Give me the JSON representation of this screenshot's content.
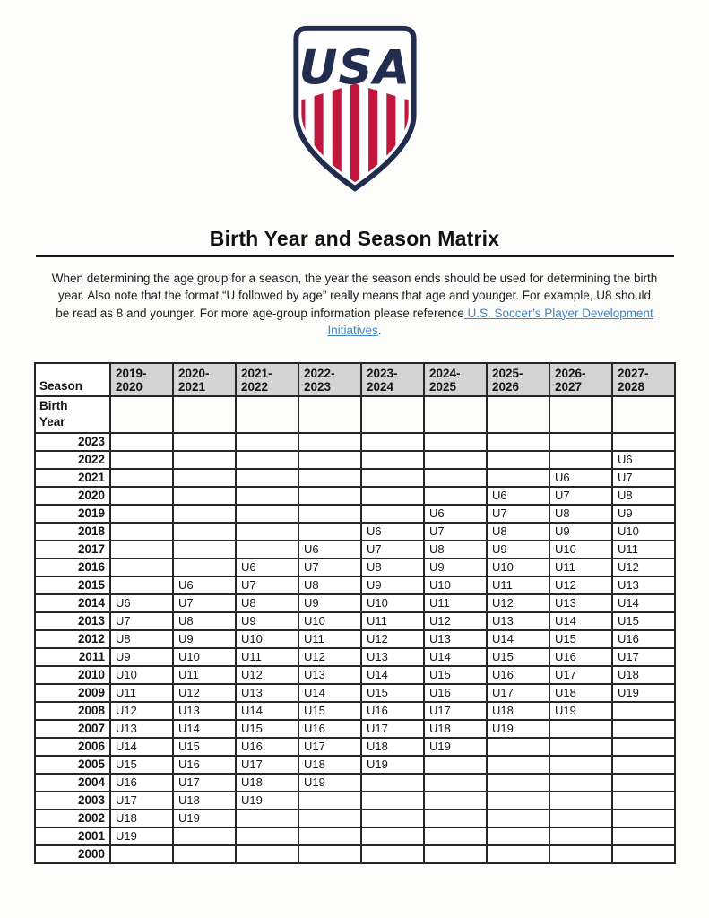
{
  "logo": {
    "wordmark": "USA",
    "navy": "#222c4f",
    "red": "#c2173d",
    "white": "#ffffff"
  },
  "title": "Birth Year and Season Matrix",
  "intro": {
    "text_before": "When determining the age group for a season, the year the season ends should be used for determining the birth year. Also note that the format “U followed by age” really means that age and younger. For example, U8 should be read as 8 and younger. For more age-group information please reference",
    "link_text": " U.S. Soccer’s Player Development Initiatives",
    "text_after": "."
  },
  "table": {
    "corner_label": "Season",
    "row_header_label": "Birth\nYear",
    "seasons": [
      "2019-\n2020",
      "2020-\n2021",
      "2021-\n2022",
      "2022-\n2023",
      "2023-\n2024",
      "2024-\n2025",
      "2025-\n2026",
      "2026-\n2027",
      "2027-\n2028"
    ],
    "rows": [
      {
        "year": "2023",
        "cells": [
          "",
          "",
          "",
          "",
          "",
          "",
          "",
          "",
          ""
        ]
      },
      {
        "year": "2022",
        "cells": [
          "",
          "",
          "",
          "",
          "",
          "",
          "",
          "",
          "U6"
        ]
      },
      {
        "year": "2021",
        "cells": [
          "",
          "",
          "",
          "",
          "",
          "",
          "",
          "U6",
          "U7"
        ]
      },
      {
        "year": "2020",
        "cells": [
          "",
          "",
          "",
          "",
          "",
          "",
          "U6",
          "U7",
          "U8"
        ]
      },
      {
        "year": "2019",
        "cells": [
          "",
          "",
          "",
          "",
          "",
          "U6",
          "U7",
          "U8",
          "U9"
        ]
      },
      {
        "year": "2018",
        "cells": [
          "",
          "",
          "",
          "",
          "U6",
          "U7",
          "U8",
          "U9",
          "U10"
        ]
      },
      {
        "year": "2017",
        "cells": [
          "",
          "",
          "",
          "U6",
          "U7",
          "U8",
          "U9",
          "U10",
          "U11"
        ]
      },
      {
        "year": "2016",
        "cells": [
          "",
          "",
          "U6",
          "U7",
          "U8",
          "U9",
          "U10",
          "U11",
          "U12"
        ]
      },
      {
        "year": "2015",
        "cells": [
          "",
          "U6",
          "U7",
          "U8",
          "U9",
          "U10",
          "U11",
          "U12",
          "U13"
        ]
      },
      {
        "year": "2014",
        "cells": [
          "U6",
          "U7",
          "U8",
          "U9",
          "U10",
          "U11",
          "U12",
          "U13",
          "U14"
        ]
      },
      {
        "year": "2013",
        "cells": [
          "U7",
          "U8",
          "U9",
          "U10",
          "U11",
          "U12",
          "U13",
          "U14",
          "U15"
        ]
      },
      {
        "year": "2012",
        "cells": [
          "U8",
          "U9",
          "U10",
          "U11",
          "U12",
          "U13",
          "U14",
          "U15",
          "U16"
        ]
      },
      {
        "year": "2011",
        "cells": [
          "U9",
          "U10",
          "U11",
          "U12",
          "U13",
          "U14",
          "U15",
          "U16",
          "U17"
        ]
      },
      {
        "year": "2010",
        "cells": [
          "U10",
          "U11",
          "U12",
          "U13",
          "U14",
          "U15",
          "U16",
          "U17",
          "U18"
        ]
      },
      {
        "year": "2009",
        "cells": [
          "U11",
          "U12",
          "U13",
          "U14",
          "U15",
          "U16",
          "U17",
          "U18",
          "U19"
        ]
      },
      {
        "year": "2008",
        "cells": [
          "U12",
          "U13",
          "U14",
          "U15",
          "U16",
          "U17",
          "U18",
          "U19",
          ""
        ]
      },
      {
        "year": "2007",
        "cells": [
          "U13",
          "U14",
          "U15",
          "U16",
          "U17",
          "U18",
          "U19",
          "",
          ""
        ]
      },
      {
        "year": "2006",
        "cells": [
          "U14",
          "U15",
          "U16",
          "U17",
          "U18",
          "U19",
          "",
          "",
          ""
        ]
      },
      {
        "year": "2005",
        "cells": [
          "U15",
          "U16",
          "U17",
          "U18",
          "U19",
          "",
          "",
          "",
          ""
        ]
      },
      {
        "year": "2004",
        "cells": [
          "U16",
          "U17",
          "U18",
          "U19",
          "",
          "",
          "",
          "",
          ""
        ]
      },
      {
        "year": "2003",
        "cells": [
          "U17",
          "U18",
          "U19",
          "",
          "",
          "",
          "",
          "",
          ""
        ]
      },
      {
        "year": "2002",
        "cells": [
          "U18",
          "U19",
          "",
          "",
          "",
          "",
          "",
          "",
          ""
        ]
      },
      {
        "year": "2001",
        "cells": [
          "U19",
          "",
          "",
          "",
          "",
          "",
          "",
          "",
          ""
        ]
      },
      {
        "year": "2000",
        "cells": [
          "",
          "",
          "",
          "",
          "",
          "",
          "",
          "",
          ""
        ]
      }
    ]
  }
}
